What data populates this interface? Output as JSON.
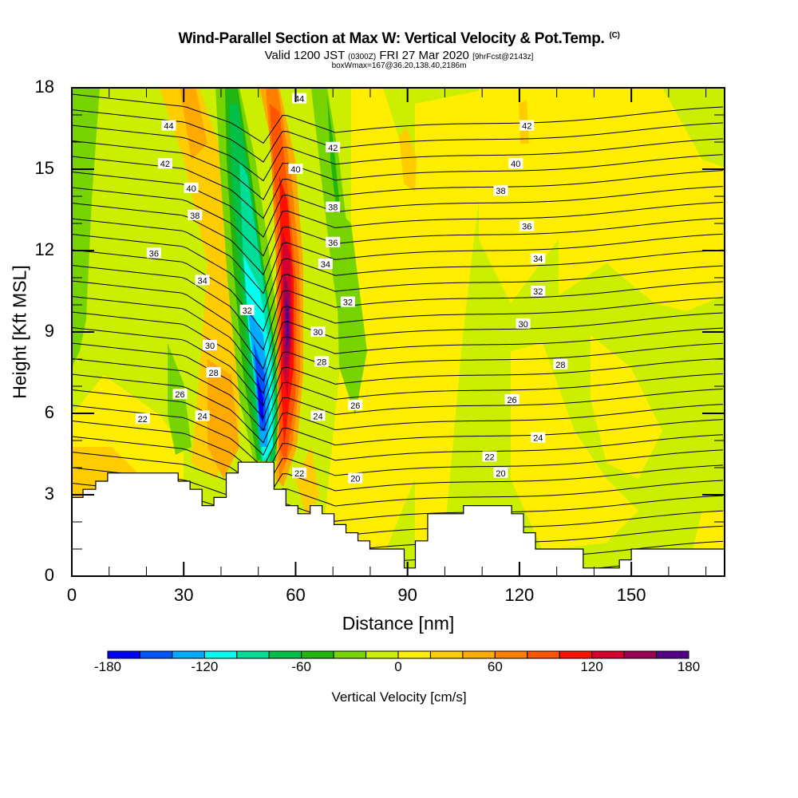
{
  "header": {
    "title": "Wind-Parallel Section at Max W: Vertical Velocity & Pot.Temp.",
    "copyright": "(C)",
    "valid_prefix": "Valid 1200 JST",
    "valid_utc": "(0300Z)",
    "valid_date": "FRI 27 Mar 2020",
    "forecast": "[9hrFcst@2143z]",
    "boxwmax": "boxWmax=167@36.20,138.40,2186m"
  },
  "chart_data": {
    "type": "heatmap",
    "subtype": "cross-section contour fill with isentropes",
    "title": "Wind-Parallel Section at Max W: Vertical Velocity & Pot.Temp.",
    "xlabel": "Distance [nm]",
    "ylabel": "Height [Kft MSL]",
    "xlim": [
      0,
      175
    ],
    "ylim": [
      0,
      18
    ],
    "xticks": [
      "0",
      "30",
      "60",
      "90",
      "120",
      "150"
    ],
    "xtick_values": [
      0,
      30,
      60,
      90,
      120,
      150
    ],
    "yticks": [
      "0",
      "3",
      "6",
      "9",
      "12",
      "15",
      "18"
    ],
    "ytick_values": [
      0,
      3,
      6,
      9,
      12,
      15,
      18
    ],
    "colorbar": {
      "title": "Vertical Velocity [cm/s]",
      "levels": [
        -180,
        -160,
        -140,
        -120,
        -100,
        -80,
        -60,
        -40,
        -20,
        0,
        20,
        40,
        60,
        80,
        100,
        120,
        140,
        160,
        180
      ],
      "tick_labels": [
        "-180",
        "-120",
        "-60",
        "0",
        "60",
        "120",
        "180"
      ],
      "tick_values": [
        -180,
        -120,
        -60,
        0,
        60,
        120,
        180
      ],
      "colors": [
        "#0000ff",
        "#0055ff",
        "#00aaff",
        "#00ffee",
        "#00dd99",
        "#00c04a",
        "#22b411",
        "#77d400",
        "#ccee00",
        "#ffee00",
        "#ffcc00",
        "#ffaa00",
        "#ff7f00",
        "#ff5500",
        "#ff1100",
        "#d40030",
        "#990055",
        "#550088"
      ]
    },
    "contour_field": "Potential temperature (isentropes)",
    "contour_labels": [
      {
        "value": "44",
        "x_nm": 26,
        "y_kft": 16.6
      },
      {
        "value": "42",
        "x_nm": 25,
        "y_kft": 15.2
      },
      {
        "value": "40",
        "x_nm": 32,
        "y_kft": 14.3
      },
      {
        "value": "38",
        "x_nm": 33,
        "y_kft": 13.3
      },
      {
        "value": "36",
        "x_nm": 22,
        "y_kft": 11.9
      },
      {
        "value": "34",
        "x_nm": 35,
        "y_kft": 10.9
      },
      {
        "value": "30",
        "x_nm": 37,
        "y_kft": 8.5
      },
      {
        "value": "28",
        "x_nm": 38,
        "y_kft": 7.5
      },
      {
        "value": "26",
        "x_nm": 29,
        "y_kft": 6.7
      },
      {
        "value": "24",
        "x_nm": 35,
        "y_kft": 5.9
      },
      {
        "value": "22",
        "x_nm": 19,
        "y_kft": 5.8
      },
      {
        "value": "44",
        "x_nm": 61,
        "y_kft": 17.6
      },
      {
        "value": "42",
        "x_nm": 70,
        "y_kft": 15.8
      },
      {
        "value": "40",
        "x_nm": 60,
        "y_kft": 15.0
      },
      {
        "value": "38",
        "x_nm": 70,
        "y_kft": 13.6
      },
      {
        "value": "36",
        "x_nm": 70,
        "y_kft": 12.3
      },
      {
        "value": "34",
        "x_nm": 68,
        "y_kft": 11.5
      },
      {
        "value": "32",
        "x_nm": 47,
        "y_kft": 9.8
      },
      {
        "value": "32",
        "x_nm": 74,
        "y_kft": 10.1
      },
      {
        "value": "30",
        "x_nm": 66,
        "y_kft": 9.0
      },
      {
        "value": "28",
        "x_nm": 67,
        "y_kft": 7.9
      },
      {
        "value": "26",
        "x_nm": 76,
        "y_kft": 6.3
      },
      {
        "value": "24",
        "x_nm": 66,
        "y_kft": 5.9
      },
      {
        "value": "22",
        "x_nm": 61,
        "y_kft": 3.8
      },
      {
        "value": "20",
        "x_nm": 76,
        "y_kft": 3.6
      },
      {
        "value": "42",
        "x_nm": 122,
        "y_kft": 16.6
      },
      {
        "value": "40",
        "x_nm": 119,
        "y_kft": 15.2
      },
      {
        "value": "38",
        "x_nm": 115,
        "y_kft": 14.2
      },
      {
        "value": "36",
        "x_nm": 122,
        "y_kft": 12.9
      },
      {
        "value": "34",
        "x_nm": 125,
        "y_kft": 11.7
      },
      {
        "value": "32",
        "x_nm": 125,
        "y_kft": 10.5
      },
      {
        "value": "30",
        "x_nm": 121,
        "y_kft": 9.3
      },
      {
        "value": "28",
        "x_nm": 131,
        "y_kft": 7.8
      },
      {
        "value": "26",
        "x_nm": 118,
        "y_kft": 6.5
      },
      {
        "value": "24",
        "x_nm": 125,
        "y_kft": 5.1
      },
      {
        "value": "22",
        "x_nm": 112,
        "y_kft": 4.4
      },
      {
        "value": "20",
        "x_nm": 115,
        "y_kft": 3.8
      }
    ],
    "terrain_profile": {
      "x_nm": [
        0,
        3,
        6.4,
        9.6,
        28.5,
        31.7,
        34.9,
        38.1,
        41.4,
        44.6,
        54.2,
        57.4,
        60.6,
        63.9,
        67.1,
        70.3,
        73.5,
        76.7,
        79.9,
        89.1,
        92.1,
        95.4,
        105,
        117.9,
        121.1,
        124.3,
        137.1,
        146.8,
        150,
        175
      ],
      "height_kft": [
        2.9,
        3.2,
        3.5,
        3.8,
        3.5,
        3.2,
        2.6,
        2.9,
        3.8,
        4.2,
        3.2,
        2.6,
        2.3,
        2.6,
        2.3,
        1.9,
        1.6,
        1.3,
        1.0,
        0.3,
        1.3,
        2.3,
        2.6,
        2.3,
        1.6,
        1.0,
        0.3,
        0.6,
        1.0,
        1.0
      ]
    },
    "grid": false,
    "legend": "bottom (horizontal colorbar)"
  }
}
